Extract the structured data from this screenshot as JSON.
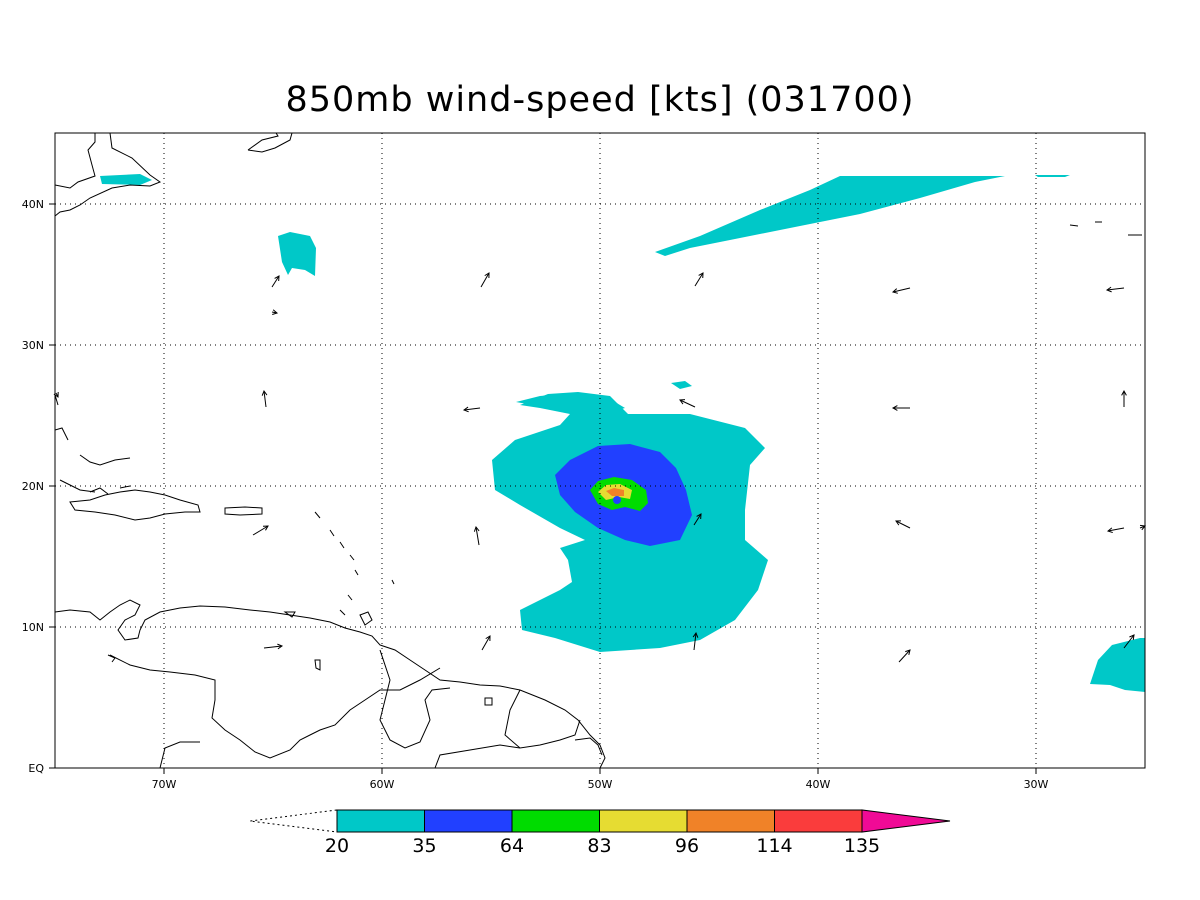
{
  "title": "850mb wind-speed [kts] (031700)",
  "lat_labels": [
    "40N",
    "30N",
    "20N",
    "10N",
    "EQ"
  ],
  "lon_labels": [
    "70W",
    "60W",
    "50W",
    "40W",
    "30W"
  ],
  "colorbar": {
    "labels": [
      "20",
      "35",
      "64",
      "83",
      "96",
      "114",
      "135"
    ],
    "colors": [
      "#00c8c8",
      "#2140ff",
      "#00dc00",
      "#e6dc32",
      "#f08228",
      "#fa3c3c",
      "#f00a96"
    ]
  },
  "map_extent": {
    "lon_min": -75,
    "lon_max": -25,
    "lat_min": 0,
    "lat_max": 45
  }
}
